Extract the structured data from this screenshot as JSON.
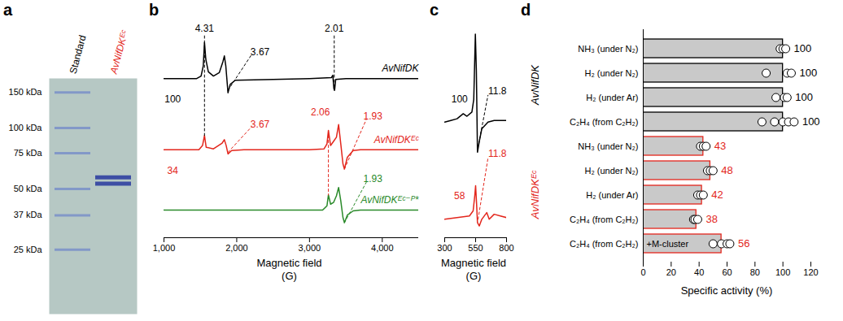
{
  "chart_data": [
    {
      "panel_label": "a",
      "type": "gel",
      "log": "y",
      "ylim": [
        12,
        176
      ],
      "tick_labels": "y",
      "yticks": [
        {
          "value": 150,
          "label": "150 kDa"
        },
        {
          "value": 100,
          "label": "100 kDa"
        },
        {
          "value": 75,
          "label": "75 kDa"
        },
        {
          "value": 50,
          "label": "50 kDa"
        },
        {
          "value": 37,
          "label": "37 kDa"
        },
        {
          "value": 25,
          "label": "25 kDa"
        }
      ],
      "lanes": [
        {
          "name": "Standard",
          "color": "#000000",
          "values": [
            150,
            100,
            75,
            50,
            37,
            25
          ]
        },
        {
          "name": "AvNifDKᴱᶜ",
          "color": "#e3261c",
          "values": [
            57,
            53
          ]
        }
      ]
    },
    {
      "panel_label": "b",
      "type": "line",
      "xlabel": "Magnetic field\n(G)",
      "xlim": [
        1000,
        4500
      ],
      "xticks": [
        {
          "value": 1000,
          "label": "1,000"
        },
        {
          "value": 2000,
          "label": "2,000"
        },
        {
          "value": 3000,
          "label": "3,000"
        },
        {
          "value": 4000,
          "label": "4,000"
        }
      ],
      "ylim": [
        0,
        260
      ],
      "tick_labels": "x",
      "series": [
        {
          "name": "AvNifDK",
          "color": "#000000",
          "x": [
            1000,
            1450,
            1510,
            1540,
            1557,
            1575,
            1610,
            1680,
            1760,
            1810,
            1830,
            1850,
            1880,
            1910,
            1980,
            2500,
            3000,
            3300,
            3320,
            3335,
            3345,
            3360,
            3500,
            4500
          ],
          "values": [
            190,
            190,
            193,
            205,
            233,
            213,
            198,
            193,
            197,
            210,
            217,
            205,
            173,
            183,
            188,
            189,
            190,
            191,
            194,
            178,
            176,
            189,
            190,
            190
          ]
        },
        {
          "name": "AvNifDKᴱᶜ",
          "color": "#e3261c",
          "x": [
            1000,
            1480,
            1530,
            1557,
            1580,
            1680,
            1800,
            1830,
            1855,
            1880,
            1930,
            2100,
            3000,
            3200,
            3240,
            3260,
            3290,
            3330,
            3370,
            3400,
            3430,
            3460,
            3480,
            3520,
            3600,
            3700,
            4500
          ],
          "values": [
            105,
            105,
            110,
            122,
            108,
            106,
            113,
            117,
            110,
            100,
            104,
            105,
            105,
            106,
            112,
            128,
            110,
            115,
            120,
            135,
            112,
            88,
            82,
            96,
            104,
            105,
            105
          ]
        },
        {
          "name": "AvNifDKᴱᶜ⁻ᴾ*",
          "color": "#2a8a2a",
          "x": [
            1000,
            3180,
            3240,
            3260,
            3290,
            3330,
            3370,
            3400,
            3430,
            3460,
            3480,
            3520,
            3600,
            3700,
            4500
          ],
          "values": [
            33,
            33,
            38,
            51,
            40,
            42,
            50,
            60,
            44,
            24,
            18,
            27,
            32,
            33,
            33
          ]
        }
      ],
      "annotations": [
        {
          "text": "4.31",
          "color": "#000000",
          "x": 1557,
          "y": 250,
          "line": [
            [
              1557,
              241
            ],
            [
              1557,
              122
            ]
          ]
        },
        {
          "text": "3.67",
          "color": "#000000",
          "x": 2320,
          "y": 222,
          "line": [
            [
              1880,
              176
            ],
            [
              2200,
              218
            ]
          ]
        },
        {
          "text": "2.01",
          "color": "#000000",
          "x": 3340,
          "y": 250,
          "line": [
            [
              3340,
              241
            ],
            [
              3340,
              176
            ]
          ]
        },
        {
          "text": "100",
          "color": "#000000",
          "x": 1120,
          "y": 165
        },
        {
          "text": "3.67",
          "color": "#e3261c",
          "x": 2320,
          "y": 135,
          "line": [
            [
              1880,
              102
            ],
            [
              2200,
              132
            ]
          ]
        },
        {
          "text": "2.06",
          "color": "#e3261c",
          "x": 3150,
          "y": 150,
          "line": [
            [
              3260,
              128
            ],
            [
              3260,
              51
            ]
          ]
        },
        {
          "text": "1.93",
          "color": "#e3261c",
          "x": 3870,
          "y": 145,
          "line": [
            [
              3480,
              82
            ],
            [
              3780,
              141
            ]
          ]
        },
        {
          "text": "34",
          "color": "#e3261c",
          "x": 1120,
          "y": 80
        },
        {
          "text": "1.93",
          "color": "#2a8a2a",
          "x": 3870,
          "y": 70,
          "line": [
            [
              3480,
              18
            ],
            [
              3780,
              66
            ]
          ]
        }
      ]
    },
    {
      "panel_label": "c",
      "type": "line",
      "xlabel": "Magnetic field\n(G)",
      "xlim": [
        300,
        800
      ],
      "xticks": [
        300,
        550,
        800
      ],
      "ylim": [
        0,
        260
      ],
      "tick_labels": "x",
      "series": [
        {
          "color": "#000000",
          "x": [
            300,
            350,
            400,
            450,
            480,
            520,
            535,
            548,
            556,
            565,
            580,
            600,
            650,
            700,
            800
          ],
          "values": [
            138,
            140,
            142,
            148,
            145,
            150,
            165,
            243,
            200,
            102,
            115,
            130,
            138,
            140,
            140
          ]
        },
        {
          "color": "#e3261c",
          "x": [
            300,
            400,
            500,
            530,
            543,
            550,
            558,
            565,
            580,
            600,
            640,
            660,
            700,
            750,
            800
          ],
          "values": [
            22,
            24,
            26,
            32,
            50,
            62,
            40,
            18,
            14,
            22,
            30,
            22,
            28,
            26,
            24
          ]
        }
      ],
      "annotations": [
        {
          "text": "100",
          "color": "#000000",
          "x": 420,
          "y": 165
        },
        {
          "text": "11.8",
          "color": "#000000",
          "x": 800,
          "y": 175,
          "line": [
            [
              575,
              112
            ],
            [
              650,
              170
            ]
          ]
        },
        {
          "text": "58",
          "color": "#e3261c",
          "x": 420,
          "y": 50
        },
        {
          "text": "11.8",
          "color": "#e3261c",
          "x": 800,
          "y": 100,
          "line": [
            [
              570,
              22
            ],
            [
              650,
              95
            ]
          ]
        }
      ]
    },
    {
      "panel_label": "d",
      "type": "bar",
      "orientation": "horizontal",
      "xlabel": "Specific activity (%)",
      "xlim": [
        0,
        120
      ],
      "xticks": [
        0,
        20,
        40,
        60,
        80,
        100,
        120
      ],
      "data_labels": true,
      "categories": [
        "NH₃ (under N₂)",
        "H₂ (under N₂)",
        "H₂ (under Ar)",
        "C₂H₄ (from C₂H₂)",
        "NH₃ (under N₂)",
        "H₂ (under N₂)",
        "H₂ (under Ar)",
        "C₂H₄ (from C₂H₂)",
        "C₂H₄ (from C₂H₂)"
      ],
      "values": [
        100,
        100,
        100,
        100,
        43,
        48,
        42,
        38,
        56
      ],
      "groups": [
        "AvNifDK",
        "AvNifDK",
        "AvNifDK",
        "AvNifDK",
        "AvNifDKᴱᶜ",
        "AvNifDKᴱᶜ",
        "AvNifDKᴱᶜ",
        "AvNifDKᴱᶜ",
        "AvNifDKᴱᶜ"
      ],
      "colors": [
        "#000000",
        "#000000",
        "#000000",
        "#000000",
        "#e3261c",
        "#e3261c",
        "#e3261c",
        "#e3261c",
        "#e3261c"
      ],
      "points": [
        [
          98,
          100,
          102
        ],
        [
          88,
          103,
          106
        ],
        [
          95,
          101,
          103
        ],
        [
          85,
          94,
          100,
          104,
          108
        ],
        [
          41,
          43,
          45
        ],
        [
          46,
          48,
          50
        ],
        [
          39,
          41,
          43
        ],
        [
          36,
          37,
          39
        ],
        [
          50,
          56,
          60,
          62
        ]
      ],
      "inner_labels": [
        null,
        null,
        null,
        null,
        null,
        null,
        null,
        null,
        "+M-cluster"
      ]
    }
  ]
}
